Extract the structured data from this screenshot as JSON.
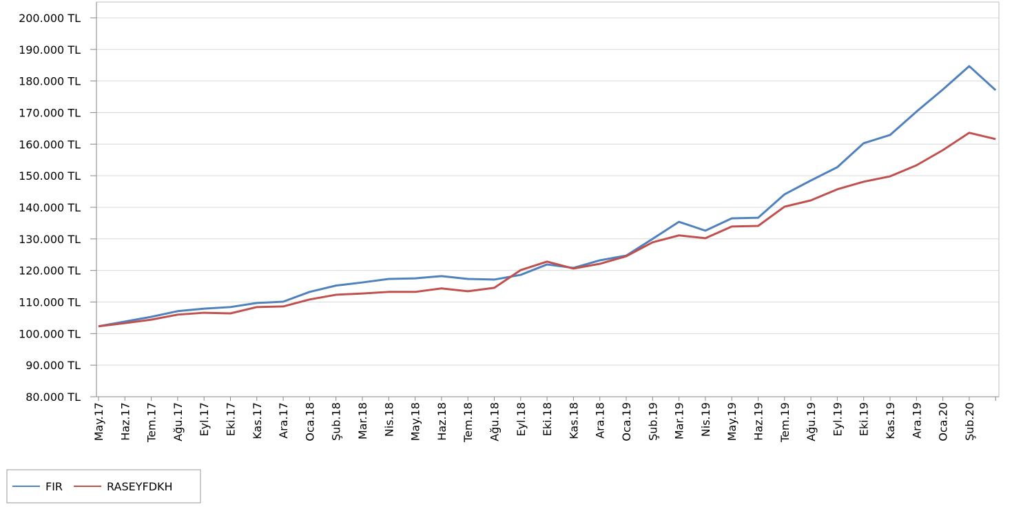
{
  "chart_data": {
    "type": "line",
    "categories": [
      "May.17",
      "Haz.17",
      "Tem.17",
      "Ağu.17",
      "Eyl.17",
      "Eki.17",
      "Kas.17",
      "Ara.17",
      "Oca.18",
      "Şub.18",
      "Mar.18",
      "Nis.18",
      "May.18",
      "Haz.18",
      "Tem.18",
      "Ağu.18",
      "Eyl.18",
      "Eki.18",
      "Kas.18",
      "Ara.18",
      "Oca.19",
      "Şub.19",
      "Mar.19",
      "Nis.19",
      "May.19",
      "Haz.19",
      "Tem.19",
      "Ağu.19",
      "Eyl.19",
      "Eki.19",
      "Kas.19",
      "Ara.19",
      "Oca.20",
      "Şub.20",
      null
    ],
    "series": [
      {
        "name": "FIR",
        "color": "#4f81bd",
        "values": [
          102300,
          103800,
          105300,
          107100,
          107900,
          108400,
          109700,
          110100,
          113200,
          115200,
          116200,
          117300,
          117500,
          118200,
          117300,
          117100,
          118600,
          121900,
          120800,
          123200,
          124700,
          130000,
          135400,
          132600,
          136500,
          136700,
          144100,
          148500,
          152700,
          160300,
          162900,
          170300,
          177300,
          184700,
          177100
        ]
      },
      {
        "name": "RASEYFDKH",
        "color": "#c0504d",
        "values": [
          102300,
          103300,
          104400,
          106000,
          106600,
          106400,
          108400,
          108600,
          110800,
          112300,
          112700,
          113200,
          113200,
          114300,
          113400,
          114500,
          120100,
          122800,
          120600,
          122100,
          124500,
          128900,
          131100,
          130200,
          133900,
          134100,
          140200,
          142200,
          145700,
          148100,
          149800,
          153300,
          158100,
          163600,
          161600
        ]
      }
    ],
    "ylim": [
      80000,
      205000
    ],
    "yticks": [
      {
        "value": 80000,
        "label": "80.000 TL"
      },
      {
        "value": 90000,
        "label": "90.000 TL"
      },
      {
        "value": 100000,
        "label": "100.000 TL"
      },
      {
        "value": 110000,
        "label": "110.000 TL"
      },
      {
        "value": 120000,
        "label": "120.000 TL"
      },
      {
        "value": 130000,
        "label": "130.000 TL"
      },
      {
        "value": 140000,
        "label": "140.000 TL"
      },
      {
        "value": 150000,
        "label": "150.000 TL"
      },
      {
        "value": 160000,
        "label": "160.000 TL"
      },
      {
        "value": 170000,
        "label": "170.000 TL"
      },
      {
        "value": 180000,
        "label": "180.000 TL"
      },
      {
        "value": 190000,
        "label": "190.000 TL"
      },
      {
        "value": 200000,
        "label": "200.000 TL"
      }
    ],
    "grid": true
  }
}
